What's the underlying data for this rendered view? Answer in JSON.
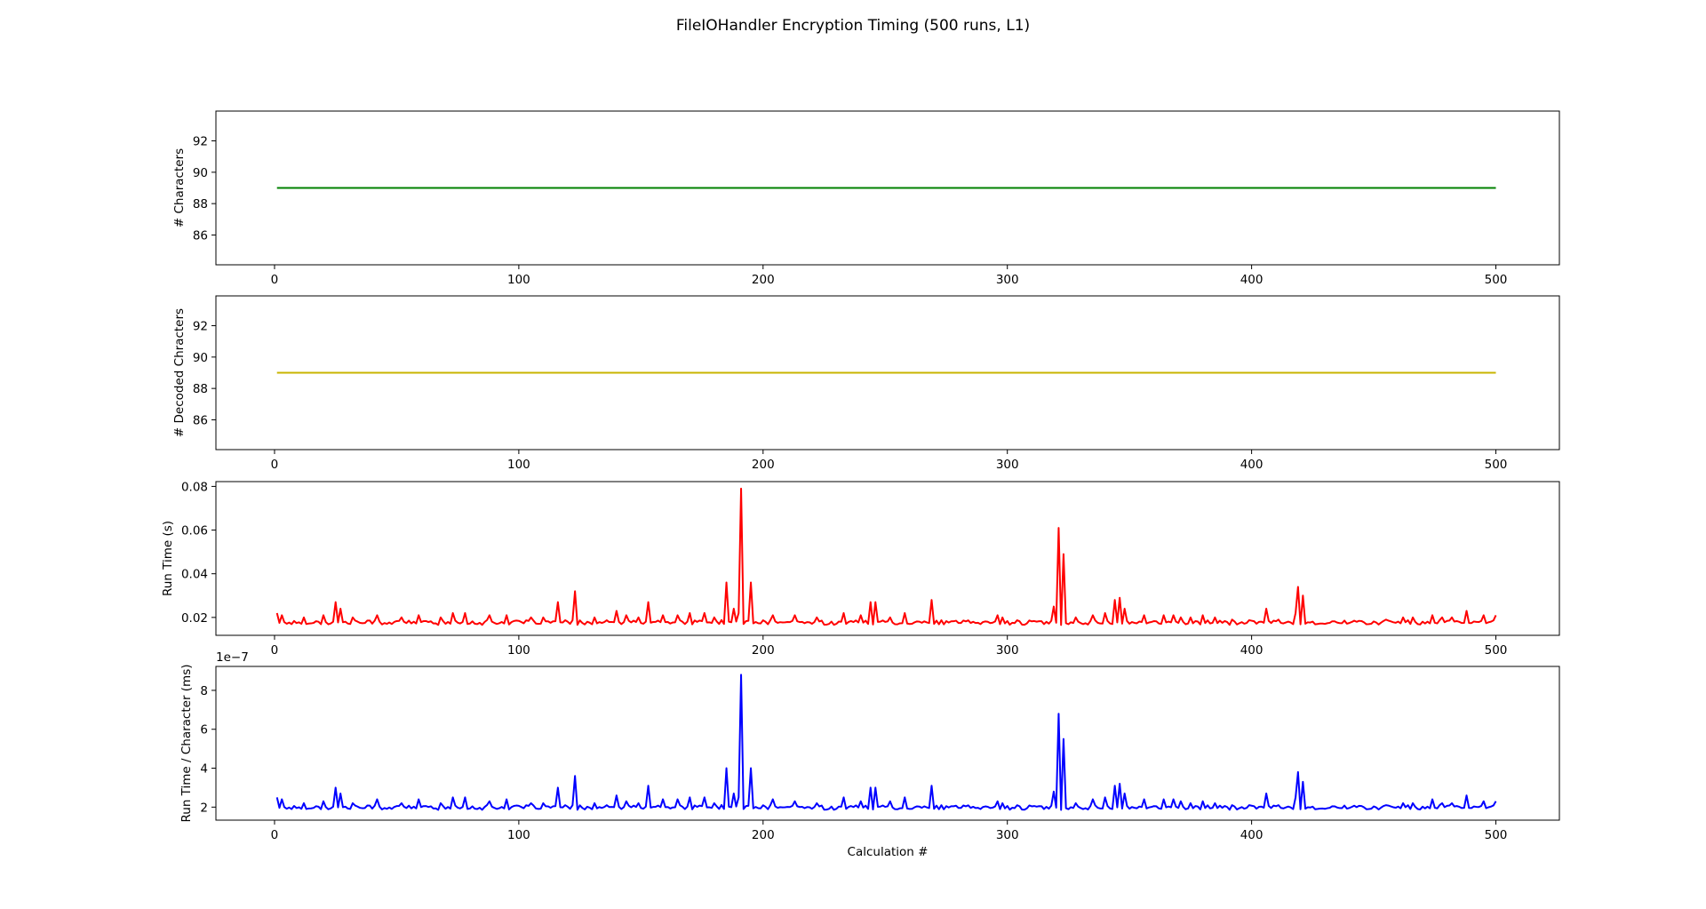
{
  "figure": {
    "title": "FileIOHandler Encryption Timing (500 runs, L1)"
  },
  "chart_data": [
    {
      "type": "line",
      "ylabel": "# Characters",
      "xlabel": "",
      "xlim": [
        -24,
        526
      ],
      "ylim": [
        84.1,
        93.9
      ],
      "xticks": [
        0,
        100,
        200,
        300,
        400,
        500
      ],
      "yticks": [
        86,
        88,
        90,
        92
      ],
      "series": [
        {
          "color": "#008000",
          "x_start": 1,
          "x_end": 500,
          "constant": 89
        }
      ]
    },
    {
      "type": "line",
      "ylabel": "# Decoded Chracters",
      "xlabel": "",
      "xlim": [
        -24,
        526
      ],
      "ylim": [
        84.1,
        93.9
      ],
      "xticks": [
        0,
        100,
        200,
        300,
        400,
        500
      ],
      "yticks": [
        86,
        88,
        90,
        92
      ],
      "series": [
        {
          "color": "#c8b400",
          "x_start": 1,
          "x_end": 500,
          "constant": 89
        }
      ]
    },
    {
      "type": "line",
      "ylabel": "Run Time (s)",
      "xlabel": "",
      "xlim": [
        -24,
        526
      ],
      "ylim": [
        0.0118,
        0.0822
      ],
      "xticks": [
        0,
        100,
        200,
        300,
        400,
        500
      ],
      "yticks": [
        0.02,
        0.04,
        0.06,
        0.08
      ],
      "ytick_labels": [
        "0.02",
        "0.04",
        "0.06",
        "0.08"
      ],
      "series": [
        {
          "color": "#ff0000",
          "x_start": 1,
          "x_end": 500,
          "baseline": 0.0165,
          "noise": 0.0025,
          "seed": 17,
          "spikes": [
            [
              1,
              0.022
            ],
            [
              3,
              0.021
            ],
            [
              12,
              0.02
            ],
            [
              20,
              0.021
            ],
            [
              25,
              0.027
            ],
            [
              27,
              0.024
            ],
            [
              32,
              0.02
            ],
            [
              42,
              0.021
            ],
            [
              52,
              0.02
            ],
            [
              59,
              0.021
            ],
            [
              68,
              0.02
            ],
            [
              73,
              0.022
            ],
            [
              78,
              0.022
            ],
            [
              88,
              0.021
            ],
            [
              95,
              0.021
            ],
            [
              105,
              0.02
            ],
            [
              110,
              0.02
            ],
            [
              116,
              0.027
            ],
            [
              123,
              0.032
            ],
            [
              131,
              0.02
            ],
            [
              140,
              0.023
            ],
            [
              144,
              0.021
            ],
            [
              149,
              0.02
            ],
            [
              153,
              0.027
            ],
            [
              159,
              0.021
            ],
            [
              165,
              0.021
            ],
            [
              170,
              0.022
            ],
            [
              176,
              0.022
            ],
            [
              180,
              0.02
            ],
            [
              185,
              0.036
            ],
            [
              188,
              0.024
            ],
            [
              190,
              0.022
            ],
            [
              191,
              0.079
            ],
            [
              195,
              0.036
            ],
            [
              204,
              0.021
            ],
            [
              213,
              0.021
            ],
            [
              222,
              0.02
            ],
            [
              233,
              0.022
            ],
            [
              240,
              0.021
            ],
            [
              244,
              0.027
            ],
            [
              246,
              0.027
            ],
            [
              252,
              0.02
            ],
            [
              258,
              0.022
            ],
            [
              269,
              0.028
            ],
            [
              296,
              0.021
            ],
            [
              298,
              0.02
            ],
            [
              319,
              0.025
            ],
            [
              321,
              0.061
            ],
            [
              323,
              0.049
            ],
            [
              328,
              0.02
            ],
            [
              335,
              0.021
            ],
            [
              340,
              0.022
            ],
            [
              344,
              0.028
            ],
            [
              346,
              0.029
            ],
            [
              348,
              0.024
            ],
            [
              356,
              0.021
            ],
            [
              364,
              0.021
            ],
            [
              368,
              0.021
            ],
            [
              371,
              0.02
            ],
            [
              375,
              0.02
            ],
            [
              380,
              0.021
            ],
            [
              385,
              0.02
            ],
            [
              392,
              0.019
            ],
            [
              406,
              0.024
            ],
            [
              411,
              0.019
            ],
            [
              418,
              0.022
            ],
            [
              419,
              0.034
            ],
            [
              421,
              0.03
            ],
            [
              443,
              0.018
            ],
            [
              455,
              0.019
            ],
            [
              462,
              0.02
            ],
            [
              466,
              0.02
            ],
            [
              474,
              0.021
            ],
            [
              478,
              0.02
            ],
            [
              482,
              0.02
            ],
            [
              488,
              0.023
            ],
            [
              495,
              0.021
            ],
            [
              500,
              0.021
            ]
          ]
        }
      ]
    },
    {
      "type": "line",
      "ylabel": "Run Time / Character (ms)",
      "xlabel": "Calculation #",
      "offset_label": "1e−7",
      "xlim": [
        -24,
        526
      ],
      "ylim": [
        1.33,
        9.23
      ],
      "xticks": [
        0,
        100,
        200,
        300,
        400,
        500
      ],
      "yticks": [
        2,
        4,
        6,
        8
      ],
      "ytick_labels": [
        "2",
        "4",
        "6",
        "8"
      ],
      "series": [
        {
          "color": "#0000ff",
          "x_start": 1,
          "x_end": 500,
          "baseline": 1.85,
          "noise": 0.28,
          "seed": 17,
          "spikes": [
            [
              1,
              2.5
            ],
            [
              3,
              2.4
            ],
            [
              12,
              2.2
            ],
            [
              20,
              2.3
            ],
            [
              25,
              3.0
            ],
            [
              27,
              2.7
            ],
            [
              32,
              2.2
            ],
            [
              42,
              2.4
            ],
            [
              52,
              2.2
            ],
            [
              59,
              2.4
            ],
            [
              68,
              2.2
            ],
            [
              73,
              2.5
            ],
            [
              78,
              2.5
            ],
            [
              88,
              2.3
            ],
            [
              95,
              2.4
            ],
            [
              105,
              2.2
            ],
            [
              110,
              2.2
            ],
            [
              116,
              3.0
            ],
            [
              123,
              3.6
            ],
            [
              131,
              2.2
            ],
            [
              140,
              2.6
            ],
            [
              144,
              2.3
            ],
            [
              149,
              2.2
            ],
            [
              153,
              3.1
            ],
            [
              159,
              2.4
            ],
            [
              165,
              2.4
            ],
            [
              170,
              2.5
            ],
            [
              176,
              2.5
            ],
            [
              180,
              2.2
            ],
            [
              185,
              4.0
            ],
            [
              188,
              2.7
            ],
            [
              190,
              2.5
            ],
            [
              191,
              8.8
            ],
            [
              195,
              4.0
            ],
            [
              204,
              2.4
            ],
            [
              213,
              2.3
            ],
            [
              222,
              2.2
            ],
            [
              233,
              2.5
            ],
            [
              240,
              2.3
            ],
            [
              244,
              3.0
            ],
            [
              246,
              3.0
            ],
            [
              252,
              2.3
            ],
            [
              258,
              2.5
            ],
            [
              269,
              3.1
            ],
            [
              296,
              2.3
            ],
            [
              298,
              2.2
            ],
            [
              319,
              2.8
            ],
            [
              321,
              6.8
            ],
            [
              323,
              5.5
            ],
            [
              328,
              2.2
            ],
            [
              335,
              2.4
            ],
            [
              340,
              2.5
            ],
            [
              344,
              3.1
            ],
            [
              346,
              3.2
            ],
            [
              348,
              2.7
            ],
            [
              356,
              2.4
            ],
            [
              364,
              2.4
            ],
            [
              368,
              2.4
            ],
            [
              371,
              2.3
            ],
            [
              375,
              2.2
            ],
            [
              380,
              2.3
            ],
            [
              385,
              2.2
            ],
            [
              392,
              2.1
            ],
            [
              406,
              2.7
            ],
            [
              411,
              2.1
            ],
            [
              418,
              2.5
            ],
            [
              419,
              3.8
            ],
            [
              421,
              3.3
            ],
            [
              443,
              2.0
            ],
            [
              455,
              2.1
            ],
            [
              462,
              2.2
            ],
            [
              466,
              2.2
            ],
            [
              474,
              2.4
            ],
            [
              478,
              2.2
            ],
            [
              482,
              2.2
            ],
            [
              488,
              2.6
            ],
            [
              495,
              2.3
            ],
            [
              500,
              2.3
            ]
          ]
        }
      ]
    }
  ]
}
